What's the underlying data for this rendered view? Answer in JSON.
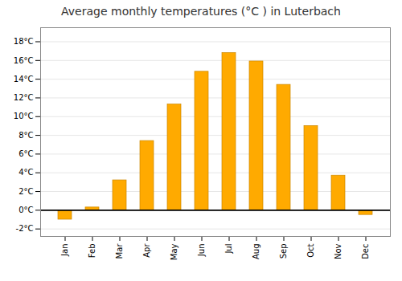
{
  "chart_data": {
    "type": "bar",
    "title": "Average monthly temperatures (°C ) in Luterbach",
    "categories": [
      "Jan",
      "Feb",
      "Mar",
      "Apr",
      "May",
      "Jun",
      "Jul",
      "Aug",
      "Sep",
      "Oct",
      "Nov",
      "Dec"
    ],
    "values": [
      -1.0,
      0.3,
      3.2,
      7.4,
      11.3,
      14.8,
      16.8,
      15.9,
      13.4,
      9.0,
      3.7,
      -0.5
    ],
    "color": "#FFAA00",
    "ylim": [
      -2.8,
      19.5
    ],
    "yticks": [
      {
        "value": -2,
        "label": "-2°C"
      },
      {
        "value": 0,
        "label": "0°C"
      },
      {
        "value": 2,
        "label": "2°C"
      },
      {
        "value": 4,
        "label": "4°C"
      },
      {
        "value": 6,
        "label": "6°C"
      },
      {
        "value": 8,
        "label": "8°C"
      },
      {
        "value": 10,
        "label": "10°C"
      },
      {
        "value": 12,
        "label": "12°C"
      },
      {
        "value": 14,
        "label": "14°C"
      },
      {
        "value": 16,
        "label": "16°C"
      },
      {
        "value": 18,
        "label": "18°C"
      }
    ],
    "grid": true
  }
}
